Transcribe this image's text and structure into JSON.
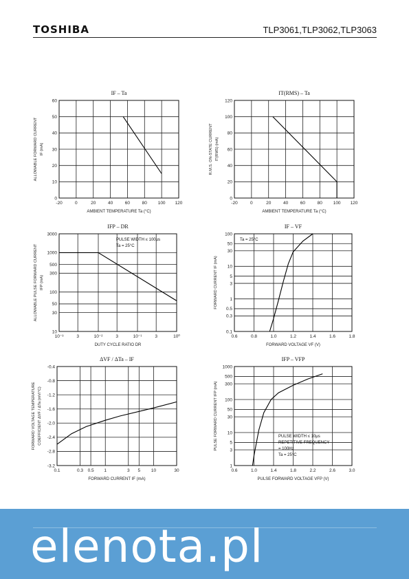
{
  "header": {
    "logo": "TOSHIBA",
    "part_numbers": "TLP3061,TLP3062,TLP3063"
  },
  "footer": {
    "brand": "elenota.pl"
  },
  "chart_data": [
    {
      "id": "c1",
      "type": "line",
      "title": "IF – Ta",
      "xlabel": "AMBIENT TEMPERATURE   Ta   (°C)",
      "ylabel": [
        "ALLOWABLE FORWARD CURRENT",
        "IF   (mA)"
      ],
      "xlim": [
        -20,
        120
      ],
      "ylim": [
        0,
        60
      ],
      "xticks": [
        -20,
        0,
        20,
        40,
        60,
        80,
        100,
        120
      ],
      "yticks": [
        0,
        10,
        20,
        30,
        40,
        50,
        60
      ],
      "xscale": "linear",
      "yscale": "linear",
      "series": [
        {
          "x": [
            55,
            100
          ],
          "y": [
            50,
            15
          ]
        }
      ]
    },
    {
      "id": "c2",
      "type": "line",
      "title": "IT(RMS) – Ta",
      "xlabel": "AMBIENT TEMPERATURE   Ta   (°C)",
      "ylabel": [
        "R.M.S. ON-STATE CURRENT",
        "IT(RMS)   (mA)"
      ],
      "xlim": [
        -20,
        120
      ],
      "ylim": [
        0,
        120
      ],
      "xticks": [
        -20,
        0,
        20,
        40,
        60,
        80,
        100,
        120
      ],
      "yticks": [
        0,
        20,
        40,
        60,
        80,
        100,
        120
      ],
      "xscale": "linear",
      "yscale": "linear",
      "series": [
        {
          "x": [
            25,
            100,
            100
          ],
          "y": [
            100,
            20,
            0
          ]
        }
      ]
    },
    {
      "id": "c3",
      "type": "line",
      "title": "IFP – DR",
      "xlabel": "DUTY CYCLE RATIO   DR",
      "ylabel": [
        "ALLOWABLE PULSE FORWARD CURRENT",
        "IFP   (mA)"
      ],
      "xlim": [
        0.001,
        1
      ],
      "ylim": [
        10,
        3000
      ],
      "xticks": [
        0.001,
        0.003,
        0.01,
        0.03,
        0.1,
        0.3,
        1
      ],
      "xticklabels": [
        "10⁻³",
        "3",
        "10⁻²",
        "3",
        "10⁻¹",
        "3",
        "10⁰"
      ],
      "yticks": [
        10,
        30,
        50,
        100,
        300,
        500,
        1000,
        3000
      ],
      "xscale": "log",
      "yscale": "log",
      "annotations": [
        "PULSE WIDTH ≤ 100μs",
        "Ta = 25°C"
      ],
      "series": [
        {
          "x": [
            0.001,
            0.01,
            1
          ],
          "y": [
            1000,
            1000,
            60
          ]
        }
      ]
    },
    {
      "id": "c4",
      "type": "line",
      "title": "IF – VF",
      "xlabel": "FORWARD VOLTAGE   VF   (V)",
      "ylabel": [
        "FORWARD CURRENT   IF   (mA)"
      ],
      "xlim": [
        0.6,
        1.8
      ],
      "ylim": [
        0.1,
        100
      ],
      "xticks": [
        0.6,
        0.8,
        1.0,
        1.2,
        1.4,
        1.6,
        1.8
      ],
      "xticklabels": [
        "0.6",
        "0.8",
        "1.0",
        "1.2",
        "1.4",
        "1.6",
        "1.8"
      ],
      "yticks": [
        0.1,
        0.3,
        0.5,
        1,
        3,
        5,
        10,
        30,
        50,
        100
      ],
      "xscale": "linear",
      "yscale": "log",
      "annotations": [
        "Ta = 25°C"
      ],
      "series": [
        {
          "x": [
            0.96,
            1.0,
            1.05,
            1.1,
            1.15,
            1.2,
            1.3,
            1.4
          ],
          "y": [
            0.1,
            0.25,
            0.9,
            3.5,
            12,
            28,
            60,
            100
          ]
        }
      ]
    },
    {
      "id": "c5",
      "type": "line",
      "title": "ΔVF / ΔTa – IF",
      "xlabel": "FORWARD CURRENT   IF   (mA)",
      "ylabel": [
        "FORWARD VOLTAGE TEMPERATURE",
        "COEFFICIENT   ΔVF / ΔTa   (mV/°C)"
      ],
      "xlim": [
        0.1,
        30
      ],
      "ylim": [
        -3.2,
        -0.4
      ],
      "xticks": [
        0.1,
        0.3,
        0.5,
        1,
        3,
        5,
        10,
        30
      ],
      "xticklabels": [
        "0.1",
        "0.3",
        "0.5",
        "1",
        "3",
        "5",
        "10",
        "30"
      ],
      "yticks": [
        -3.2,
        -2.8,
        -2.4,
        -2.0,
        -1.6,
        -1.2,
        -0.8,
        -0.4
      ],
      "yticklabels": [
        "-3.2",
        "-2.8",
        "-2.4",
        "-2.0",
        "-1.6",
        "-1.2",
        "-0.8",
        "-0.4"
      ],
      "xscale": "log",
      "yscale": "linear",
      "series": [
        {
          "x": [
            0.1,
            0.2,
            0.4,
            1,
            2,
            5,
            10,
            30
          ],
          "y": [
            -2.6,
            -2.3,
            -2.1,
            -1.92,
            -1.8,
            -1.67,
            -1.57,
            -1.4
          ]
        }
      ]
    },
    {
      "id": "c6",
      "type": "line",
      "title": "IFP – VFP",
      "xlabel": "PULSE FORWARD VOLTAGE   VFP   (V)",
      "ylabel": [
        "PULSE FORWARD CURRENT   IFP   (mA)"
      ],
      "xlim": [
        0.6,
        3.0
      ],
      "ylim": [
        1,
        1000
      ],
      "xticks": [
        0.6,
        1.0,
        1.4,
        1.8,
        2.2,
        2.6,
        3.0
      ],
      "xticklabels": [
        "0.6",
        "1.0",
        "1.4",
        "1.8",
        "2.2",
        "2.6",
        "3.0"
      ],
      "yticks": [
        1,
        3,
        5,
        10,
        30,
        50,
        100,
        300,
        500,
        1000
      ],
      "xscale": "linear",
      "yscale": "log",
      "annotations": [
        "PULSE WIDTH ≤ 10μs",
        "REPETITIVE FREQUENCY",
        "= 100Hz",
        "Ta = 25°C"
      ],
      "series": [
        {
          "x": [
            0.97,
            1.0,
            1.05,
            1.1,
            1.2,
            1.35,
            1.5,
            1.8,
            2.1,
            2.4
          ],
          "y": [
            1,
            2,
            5,
            12,
            40,
            100,
            160,
            270,
            420,
            600
          ]
        }
      ]
    }
  ]
}
